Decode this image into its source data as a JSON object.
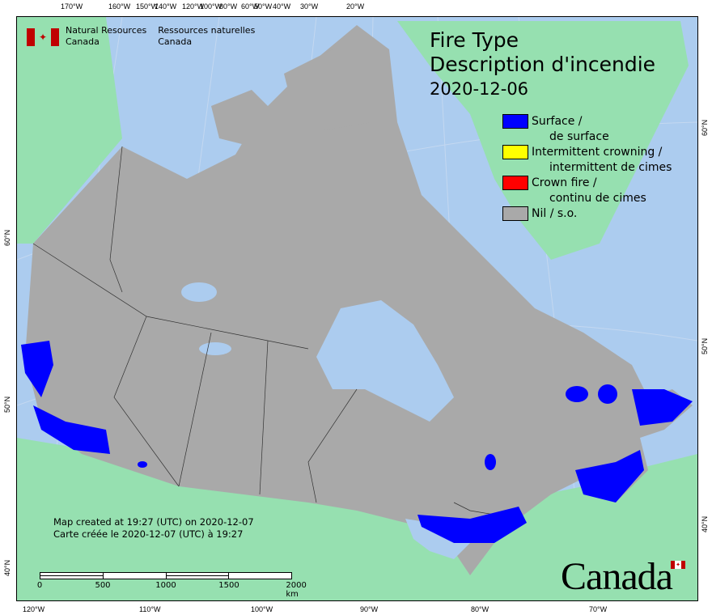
{
  "header": {
    "agency_en": [
      "Natural Resources",
      "Canada"
    ],
    "agency_fr": [
      "Ressources naturelles",
      "Canada"
    ]
  },
  "title": {
    "line1": "Fire Type",
    "line2": "Description d'incendie",
    "date": "2020-12-06"
  },
  "legend": [
    {
      "en": "Surface /",
      "fr": "de surface",
      "color": "#0000ff"
    },
    {
      "en": "Intermittent crowning /",
      "fr": "intermittent de cimes",
      "color": "#ffff00"
    },
    {
      "en": "Crown fire /",
      "fr": "continu de cimes",
      "color": "#ff0000"
    },
    {
      "en": "Nil / s.o.",
      "fr": "",
      "color": "#a9a9a9"
    }
  ],
  "credit": {
    "en": "Map created at 19:27 (UTC) on 2020-12-07",
    "fr": "Carte créée le 2020-12-07 (UTC) à 19:27"
  },
  "scale": {
    "labels": [
      "0",
      "500",
      "1000",
      "1500",
      "2000  km"
    ]
  },
  "top_ticks": [
    "170°W",
    "160°W",
    "150°W",
    "140°W",
    "120°W",
    "100°W",
    "80°W",
    "60°W",
    "50°W",
    "40°W",
    "30°W",
    "20°W"
  ],
  "bottom_ticks": [
    "120°W",
    "110°W",
    "100°W",
    "90°W",
    "80°W",
    "70°W"
  ],
  "left_ticks": [
    "60°N",
    "50°N",
    "40°N"
  ],
  "right_ticks": [
    "60°N",
    "50°N",
    "40°N"
  ],
  "wordmark": "Canada",
  "colors": {
    "ocean": "#acccef",
    "land_other": "#96e0b0",
    "canada": "#a9a9a9",
    "surface_fire": "#0000ff"
  }
}
